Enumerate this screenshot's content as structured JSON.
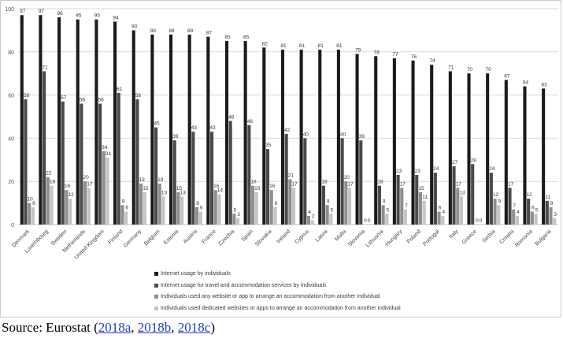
{
  "chart_data": {
    "type": "bar",
    "title": "",
    "xlabel": "",
    "ylabel": "",
    "ylim": [
      0,
      100
    ],
    "yticks": [
      0,
      20,
      40,
      60,
      80,
      100
    ],
    "grid": true,
    "legend_position": "bottom",
    "categories": [
      "Denmark",
      "Luxembourg",
      "Sweden",
      "Netherlands",
      "United Kingdom",
      "Finland",
      "Germany",
      "Belgium",
      "Estonia",
      "Austria",
      "France",
      "Czechia",
      "Spain",
      "Slovakia",
      "Ireland",
      "Cyprus",
      "Latvia",
      "Malta",
      "Slovenia",
      "Lithuania",
      "Hungary",
      "Poland",
      "Portugal",
      "Italy",
      "Greece",
      "Serbia",
      "Croatia",
      "Romania",
      "Bulgaria"
    ],
    "series": [
      {
        "name": "Internet usage by individuals",
        "color": "#1b1b1b",
        "values": [
          97,
          97,
          96,
          95,
          95,
          94,
          90,
          88,
          88,
          88,
          87,
          85,
          85,
          82,
          81,
          81,
          81,
          81,
          79,
          78,
          77,
          76,
          74,
          71,
          70,
          70,
          67,
          64,
          63
        ]
      },
      {
        "name": "Internet usage for travel and accommodation services by individuals",
        "color": "#4a4a4a",
        "values": [
          58,
          71,
          57,
          56,
          56,
          61,
          58,
          45,
          39,
          43,
          43,
          48,
          46,
          35,
          42,
          40,
          18,
          40,
          39,
          18,
          23,
          23,
          24,
          27,
          28,
          24,
          17,
          12,
          11
        ]
      },
      {
        "name": "Individuals used any website or app to arrange an accommodation from another individual",
        "color": "#8e8e8e",
        "values": [
          10,
          22,
          16,
          20,
          34,
          9,
          19,
          19,
          15,
          8,
          16,
          5,
          18,
          16,
          21,
          4,
          9,
          20,
          0,
          9,
          17,
          15,
          6,
          17,
          0,
          12,
          7,
          6,
          8
        ]
      },
      {
        "name": "Individuals used dedicated websites or apps to arrange an accommodation from another individual",
        "color": "#c4c4c4",
        "values": [
          8,
          18,
          12,
          17,
          31,
          6,
          15,
          13,
          13,
          6,
          14,
          3,
          15,
          8,
          17,
          2,
          5,
          17,
          0,
          5,
          7,
          11,
          4,
          13,
          0,
          9,
          4,
          5,
          3
        ]
      }
    ]
  },
  "source": {
    "prefix": "Source: Eurostat (",
    "links": [
      "2018a",
      "2018b",
      "2018c"
    ],
    "separator": ", ",
    "suffix": ")"
  }
}
